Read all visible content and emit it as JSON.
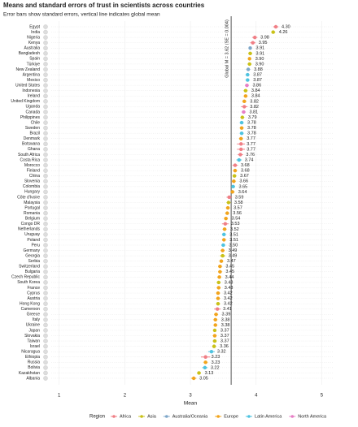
{
  "chart_data": {
    "type": "dot",
    "title": "Means and standard errors of trust in scientists across countries",
    "subtitle": "Error bars show standard errors, vertical line indicates global mean",
    "x_label": "Mean",
    "legend_title": "Region",
    "categories": [
      "Egypt",
      "India",
      "Nigeria",
      "Kenya",
      "Australia",
      "Bangladesh",
      "Spain",
      "Türkiye",
      "New Zealand",
      "Argentina",
      "Mexico",
      "United States",
      "Indonesia",
      "Ireland",
      "United Kingdom",
      "Uganda",
      "Canada",
      "Philippines",
      "Chile",
      "Sweden",
      "Brazil",
      "Denmark",
      "Botswana",
      "Ghana",
      "South Africa",
      "Costa Rica",
      "Morocco",
      "Finland",
      "China",
      "Slovenia",
      "Colombia",
      "Hungary",
      "Côte d'Ivoire",
      "Malaysia",
      "Portugal",
      "Romania",
      "Belgium",
      "Congo DR",
      "Netherlands",
      "Uruguay",
      "Poland",
      "Peru",
      "Germany",
      "Georgia",
      "Serbia",
      "Switzerland",
      "Bulgaria",
      "Czech Republic",
      "South Korea",
      "France",
      "Cyprus",
      "Austria",
      "Hong Kong",
      "Cameroon",
      "Greece",
      "Italy",
      "Ukraine",
      "Japan",
      "Slovakia",
      "Taiwan",
      "Israel",
      "Nicaragua",
      "Ethiopia",
      "Russia",
      "Bolivia",
      "Kazakhstan",
      "Albania"
    ],
    "values": [
      4.3,
      4.26,
      3.98,
      3.95,
      3.91,
      3.91,
      3.9,
      3.9,
      3.88,
      3.87,
      3.87,
      3.86,
      3.84,
      3.84,
      3.82,
      3.82,
      3.81,
      3.79,
      3.78,
      3.78,
      3.78,
      3.77,
      3.77,
      3.77,
      3.76,
      3.74,
      3.68,
      3.68,
      3.67,
      3.66,
      3.65,
      3.64,
      3.59,
      3.58,
      3.57,
      3.56,
      3.54,
      3.53,
      3.52,
      3.51,
      3.51,
      3.5,
      3.49,
      3.49,
      3.47,
      3.45,
      3.45,
      3.44,
      3.43,
      3.43,
      3.42,
      3.42,
      3.42,
      3.41,
      3.39,
      3.38,
      3.38,
      3.37,
      3.37,
      3.37,
      3.36,
      3.32,
      3.23,
      3.23,
      3.22,
      3.13,
      3.05
    ],
    "value_labels": [
      "4.30",
      "4.26",
      "3.98",
      "3.95",
      "3.91",
      "3.91",
      "3.90",
      "3.90",
      "3.88",
      "3.87",
      "3.87",
      "3.86",
      "3.84",
      "3.84",
      "3.82",
      "3.82",
      "3.81",
      "3.79",
      "3.78",
      "3.78",
      "3.78",
      "3.77",
      "3.77",
      "3.77",
      "3.76",
      "3.74",
      "3.68",
      "3.68",
      "3.67",
      "3.66",
      "3.65",
      "3.64",
      "3.59",
      "3.58",
      "3.57",
      "3.56",
      "3.54",
      "3.53",
      "3.52",
      "3.51",
      "3.51",
      "3.50",
      "3.49",
      "3.49",
      "3.47",
      "3.45",
      "3.45",
      "3.44",
      "3.43",
      "3.43",
      "3.42",
      "3.42",
      "3.42",
      "3.41",
      "3.39",
      "3.38",
      "3.38",
      "3.37",
      "3.37",
      "3.37",
      "3.36",
      "3.32",
      "3.23",
      "3.23",
      "3.22",
      "3.13",
      "3.05"
    ],
    "errors": [
      0.04,
      0.03,
      0.04,
      0.04,
      0.02,
      0.03,
      0.02,
      0.03,
      0.03,
      0.03,
      0.03,
      0.03,
      0.03,
      0.03,
      0.03,
      0.05,
      0.03,
      0.03,
      0.03,
      0.03,
      0.03,
      0.03,
      0.06,
      0.06,
      0.04,
      0.04,
      0.04,
      0.03,
      0.03,
      0.03,
      0.03,
      0.03,
      0.04,
      0.03,
      0.03,
      0.03,
      0.03,
      0.05,
      0.03,
      0.03,
      0.03,
      0.03,
      0.03,
      0.04,
      0.03,
      0.03,
      0.03,
      0.03,
      0.03,
      0.03,
      0.03,
      0.03,
      0.03,
      0.05,
      0.03,
      0.03,
      0.03,
      0.02,
      0.03,
      0.03,
      0.03,
      0.05,
      0.07,
      0.03,
      0.04,
      0.03,
      0.04
    ],
    "groups": [
      "Africa",
      "Asia",
      "Africa",
      "Africa",
      "Australia/Oceania",
      "Asia",
      "Europe",
      "Asia",
      "Australia/Oceania",
      "Latin America",
      "Latin America",
      "North America",
      "Asia",
      "Europe",
      "Europe",
      "Africa",
      "North America",
      "Asia",
      "Latin America",
      "Europe",
      "Latin America",
      "Europe",
      "Africa",
      "Africa",
      "Africa",
      "Latin America",
      "Africa",
      "Europe",
      "Asia",
      "Europe",
      "Latin America",
      "Europe",
      "Africa",
      "Asia",
      "Europe",
      "Europe",
      "Europe",
      "Africa",
      "Europe",
      "Latin America",
      "Europe",
      "Latin America",
      "Europe",
      "Asia",
      "Europe",
      "Europe",
      "Europe",
      "Europe",
      "Asia",
      "Europe",
      "Europe",
      "Europe",
      "Asia",
      "Africa",
      "Europe",
      "Europe",
      "Europe",
      "Asia",
      "Europe",
      "Asia",
      "Asia",
      "Latin America",
      "Africa",
      "Europe",
      "Latin America",
      "Asia",
      "Europe"
    ],
    "legend": [
      {
        "name": "Africa",
        "color": "#f07f86"
      },
      {
        "name": "Asia",
        "color": "#c9c117"
      },
      {
        "name": "Australia/Oceania",
        "color": "#7fa7c9"
      },
      {
        "name": "Europe",
        "color": "#f2a41c"
      },
      {
        "name": "Latin America",
        "color": "#4fc3e0"
      },
      {
        "name": "North America",
        "color": "#e77fc6"
      }
    ],
    "reference_line": 3.62,
    "reference_label": "Global M = 3.62 (SE = 0.004)",
    "xlim": [
      0.88,
      5.18
    ],
    "xticks": [
      1,
      2,
      3,
      4,
      5
    ],
    "grid": true
  }
}
